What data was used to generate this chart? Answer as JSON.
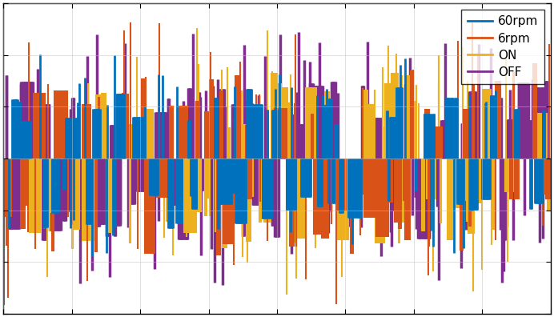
{
  "title": "",
  "xlabel": "",
  "ylabel": "",
  "legend_labels": [
    "60rpm",
    "6rpm",
    "ON",
    "OFF"
  ],
  "colors": [
    "#0072bd",
    "#d95319",
    "#edb120",
    "#7e2f8e"
  ],
  "background_color": "#ffffff",
  "ylim": [
    -1.5,
    1.5
  ],
  "xlim": [
    0,
    1
  ],
  "seed": 42,
  "line_width": 1.5,
  "figsize": [
    6.92,
    3.96
  ],
  "dpi": 100,
  "sparsity": 0.07,
  "amplitudes": [
    0.7,
    0.95,
    0.88,
    0.82
  ],
  "N": 800
}
